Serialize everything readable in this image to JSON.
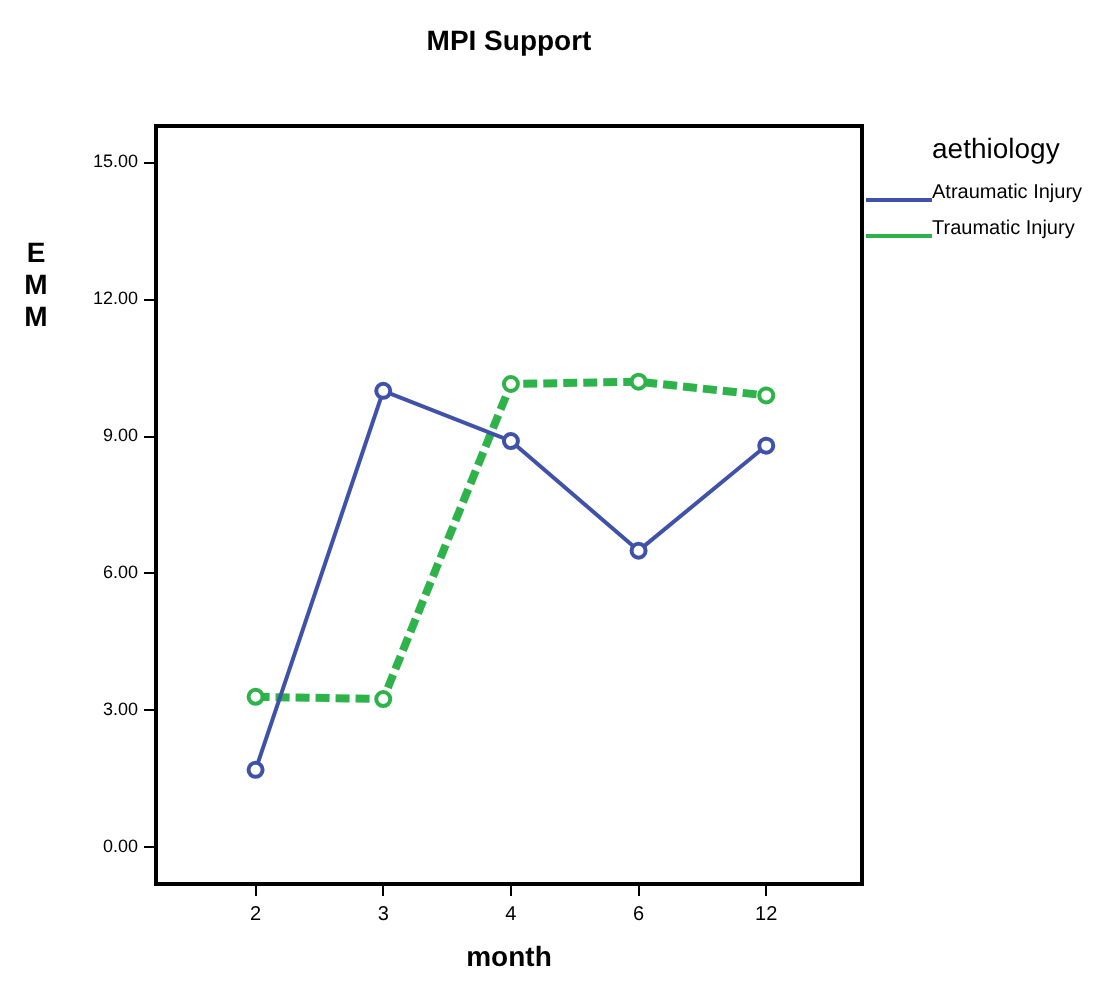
{
  "chart_data": {
    "type": "line",
    "title": "MPI Support",
    "xlabel": "month",
    "ylabel": "EMM",
    "legend_title": "aethiology",
    "legend": "top right",
    "grid": false,
    "marker": "circle",
    "categories": [
      "2",
      "3",
      "4",
      "6",
      "12"
    ],
    "ylim": [
      -0.8,
      15.8
    ],
    "yticks": [
      {
        "value": 0,
        "label": "0.00"
      },
      {
        "value": 3,
        "label": "3.00"
      },
      {
        "value": 6,
        "label": "6.00"
      },
      {
        "value": 9,
        "label": "9.00"
      },
      {
        "value": 12,
        "label": "12.00"
      },
      {
        "value": 15,
        "label": "15.00"
      }
    ],
    "series": [
      {
        "name": "Atraumatic Injury",
        "color": "#3f51a8",
        "line_style": "solid",
        "values": [
          1.7,
          10.0,
          8.9,
          6.5,
          8.8
        ]
      },
      {
        "name": "Traumatic Injury",
        "color": "#2db34a",
        "line_style": "dashed",
        "values": [
          3.3,
          3.25,
          10.15,
          10.2,
          9.9
        ]
      }
    ]
  }
}
